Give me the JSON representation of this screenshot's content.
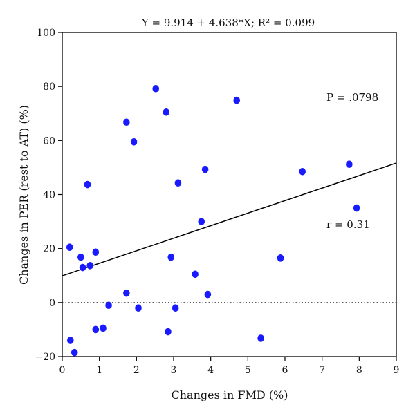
{
  "chart_data": {
    "type": "scatter",
    "title": "Y = 9.914 + 4.638*X; R² = 0.099",
    "xlabel": "Changes in FMD (%)",
    "ylabel": "Changes in PER (rest to AT) (%)",
    "xlim": [
      0,
      9
    ],
    "ylim": [
      -20,
      100
    ],
    "x_ticks": [
      0,
      1,
      2,
      3,
      4,
      5,
      6,
      7,
      8,
      9
    ],
    "y_ticks": [
      -20,
      0,
      20,
      40,
      60,
      80,
      100
    ],
    "grid": false,
    "point_color": "#1a1aff",
    "regression": {
      "intercept": 9.914,
      "slope": 4.638
    },
    "reference_line_y": 0,
    "annotations": [
      {
        "label": "P = .0798"
      },
      {
        "label": "r = 0.31"
      }
    ],
    "points": [
      {
        "x": 0.2,
        "y": 20.5
      },
      {
        "x": 0.22,
        "y": -14
      },
      {
        "x": 0.33,
        "y": -18.5
      },
      {
        "x": 0.5,
        "y": 16.8
      },
      {
        "x": 0.55,
        "y": 13
      },
      {
        "x": 0.68,
        "y": 43.7
      },
      {
        "x": 0.75,
        "y": 13.7
      },
      {
        "x": 0.9,
        "y": 18.7
      },
      {
        "x": 0.9,
        "y": -10
      },
      {
        "x": 1.1,
        "y": -9.5
      },
      {
        "x": 1.25,
        "y": -1
      },
      {
        "x": 1.73,
        "y": 66.8
      },
      {
        "x": 1.73,
        "y": 3.5
      },
      {
        "x": 1.93,
        "y": 59.5
      },
      {
        "x": 2.05,
        "y": -2
      },
      {
        "x": 2.52,
        "y": 79.2
      },
      {
        "x": 2.8,
        "y": 70.5
      },
      {
        "x": 2.85,
        "y": -10.8
      },
      {
        "x": 2.93,
        "y": 16.8
      },
      {
        "x": 3.05,
        "y": -2
      },
      {
        "x": 3.12,
        "y": 44.3
      },
      {
        "x": 3.58,
        "y": 10.5
      },
      {
        "x": 3.75,
        "y": 30
      },
      {
        "x": 3.85,
        "y": 49.3
      },
      {
        "x": 3.92,
        "y": 3
      },
      {
        "x": 4.7,
        "y": 74.9
      },
      {
        "x": 5.35,
        "y": -13.2
      },
      {
        "x": 5.88,
        "y": 16.5
      },
      {
        "x": 6.47,
        "y": 48.5
      },
      {
        "x": 7.73,
        "y": 51.2
      },
      {
        "x": 7.93,
        "y": 35
      }
    ]
  }
}
